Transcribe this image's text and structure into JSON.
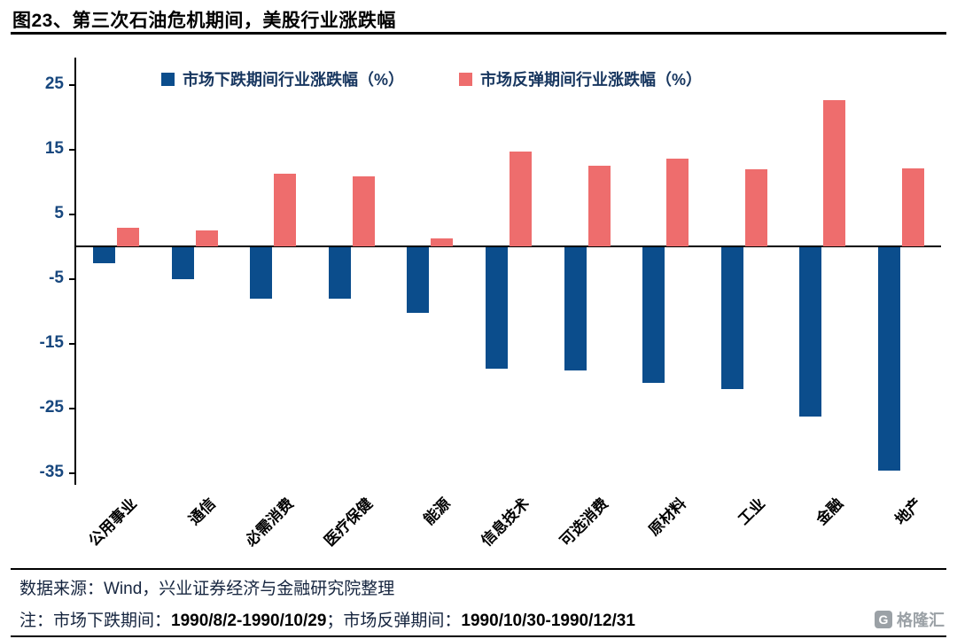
{
  "title": "图23、第三次石油危机期间，美股行业涨跌幅",
  "chart_data": {
    "type": "bar",
    "categories": [
      "公用事业",
      "通信",
      "必需消费",
      "医疗保健",
      "能源",
      "信息技术",
      "可选消费",
      "原材料",
      "工业",
      "金融",
      "地产"
    ],
    "series": [
      {
        "name": "市场下跌期间行业涨跌幅（%）",
        "color": "#0b4d8c",
        "values": [
          -2.4,
          -4.9,
          -7.9,
          -7.9,
          -10.1,
          -18.7,
          -19.1,
          -21.0,
          -21.9,
          -26.2,
          -34.5
        ]
      },
      {
        "name": "市场反弹期间行业涨跌幅（%）",
        "color": "#ee6d6d",
        "values": [
          2.9,
          2.4,
          11.2,
          10.8,
          1.2,
          14.7,
          12.5,
          13.5,
          11.9,
          22.6,
          12.1
        ]
      }
    ],
    "title": "图23、第三次石油危机期间，美股行业涨跌幅",
    "xlabel": "",
    "ylabel": "",
    "yticks": [
      25,
      15,
      5,
      -5,
      -15,
      -25,
      -35
    ],
    "ylim": [
      -37,
      29
    ],
    "grid": false,
    "legend_position": "top"
  },
  "footer": {
    "source": "数据来源：Wind，兴业证券经济与金融研究院整理",
    "note_prefix": "注：市场下跌期间：",
    "note_range1": "1990/8/2-1990/10/29",
    "note_mid": "；市场反弹期间：",
    "note_range2": "1990/10/30-1990/12/31"
  },
  "logo": {
    "icon": "G",
    "text": "格隆汇"
  }
}
